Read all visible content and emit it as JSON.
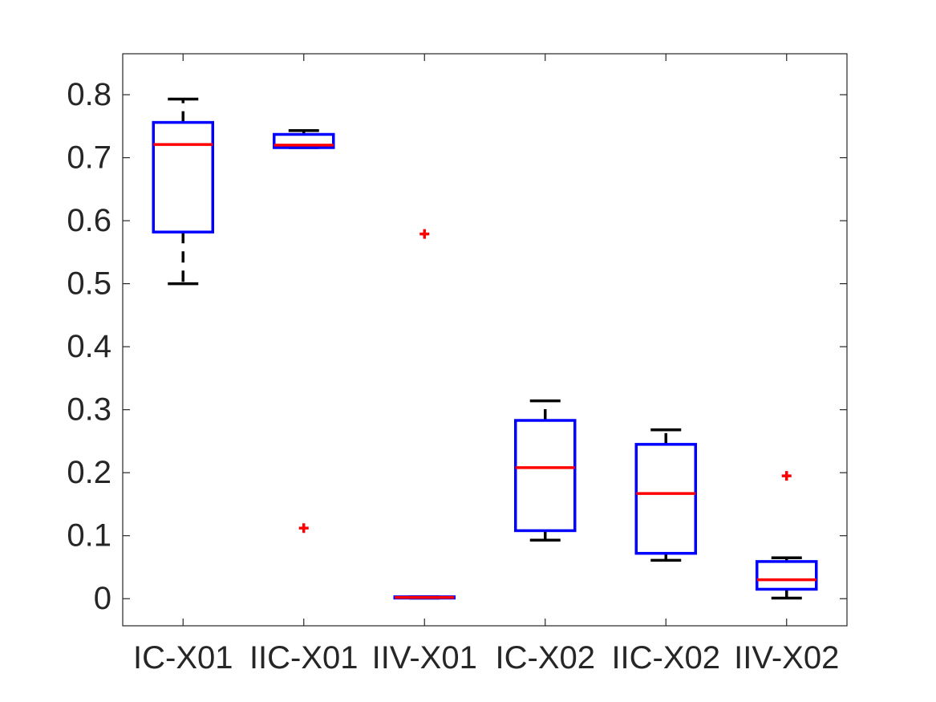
{
  "chart_data": {
    "type": "box",
    "categories": [
      "IC-X01",
      "IIC-X01",
      "IIV-X01",
      "IC-X02",
      "IIC-X02",
      "IIV-X02"
    ],
    "boxes": [
      {
        "category": "IC-X01",
        "whisker_low": 0.5,
        "q1": 0.582,
        "median": 0.721,
        "q3": 0.756,
        "whisker_high": 0.793,
        "outliers": []
      },
      {
        "category": "IIC-X01",
        "whisker_low": 0.716,
        "q1": 0.716,
        "median": 0.72,
        "q3": 0.737,
        "whisker_high": 0.743,
        "outliers": [
          0.112
        ]
      },
      {
        "category": "IIV-X01",
        "whisker_low": 0.001,
        "q1": 0.001,
        "median": 0.002,
        "q3": 0.003,
        "whisker_high": 0.003,
        "outliers": [
          0.579
        ]
      },
      {
        "category": "IC-X02",
        "whisker_low": 0.093,
        "q1": 0.108,
        "median": 0.208,
        "q3": 0.283,
        "whisker_high": 0.314,
        "outliers": []
      },
      {
        "category": "IIC-X02",
        "whisker_low": 0.061,
        "q1": 0.072,
        "median": 0.167,
        "q3": 0.245,
        "whisker_high": 0.268,
        "outliers": []
      },
      {
        "category": "IIV-X02",
        "whisker_low": 0.001,
        "q1": 0.015,
        "median": 0.03,
        "q3": 0.059,
        "whisker_high": 0.065,
        "outliers": [
          0.195
        ]
      }
    ],
    "ylim": [
      -0.043,
      0.865
    ],
    "yticks": [
      0,
      0.1,
      0.2,
      0.3,
      0.4,
      0.5,
      0.6,
      0.7,
      0.8
    ],
    "ytick_labels": [
      "0",
      "0.1",
      "0.2",
      "0.3",
      "0.4",
      "0.5",
      "0.6",
      "0.7",
      "0.8"
    ],
    "title": "",
    "xlabel": "",
    "ylabel": "",
    "grid": false,
    "colors": {
      "box": "#0000ff",
      "median": "#ff0000",
      "whisker": "#000000",
      "outlier": "#ff0000",
      "axes": "#262626"
    }
  }
}
